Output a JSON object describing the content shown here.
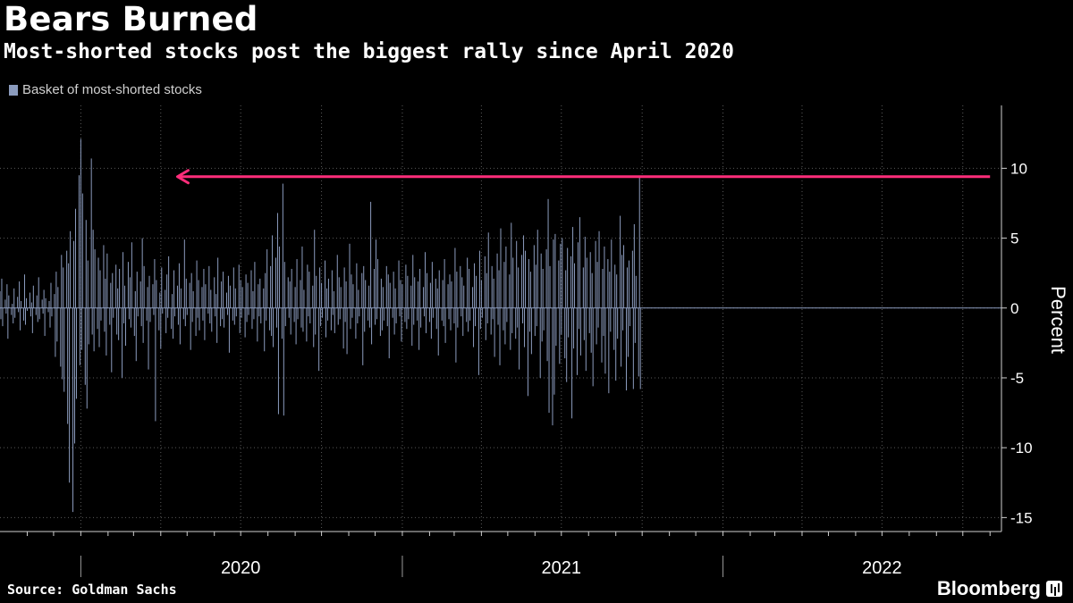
{
  "header": {
    "title": "Bears Burned",
    "subtitle": "Most-shorted stocks post the biggest rally since April 2020"
  },
  "legend": {
    "label": "Basket of most-shorted stocks"
  },
  "footer": {
    "source": "Source: Goldman Sachs",
    "brand": "Bloomberg"
  },
  "colors": {
    "bar": "#8b9bbd",
    "arrow": "#ff2d7a",
    "grid": "#5a5a5a",
    "text": "#ffffff"
  },
  "chart_data": {
    "type": "bar",
    "ylabel": "Percent",
    "ylim": [
      -16,
      14.5
    ],
    "yticks": [
      10,
      5,
      0,
      -5,
      -10,
      -15
    ],
    "xlim": [
      "2019-10-01",
      "2022-11-14"
    ],
    "x_labels": [
      {
        "label": "2020",
        "date": "2020-07-01"
      },
      {
        "label": "2021",
        "date": "2021-07-01"
      },
      {
        "label": "2022",
        "date": "2022-07-01"
      }
    ],
    "annotation": {
      "type": "arrow",
      "from_date": "2022-11-01",
      "to_date": "2020-04-20",
      "y": 9.4
    },
    "series": [
      {
        "start_date": "2019-10-01",
        "frequency": "business-day",
        "values": [
          1.2,
          -0.8,
          2.1,
          -1.3,
          0.6,
          -0.4,
          1.7,
          -2.2,
          0.9,
          -0.5,
          0.3,
          -1.1,
          1.4,
          -0.7,
          0.8,
          -0.3,
          1.9,
          -1.6,
          0.5,
          -0.9,
          2.4,
          -1.2,
          0.7,
          -0.2,
          1.1,
          -0.6,
          0.4,
          -1.8,
          1.6,
          -0.5,
          0.9,
          -1.0,
          2.2,
          -0.8,
          0.6,
          -0.4,
          1.3,
          -2.0,
          0.7,
          -0.3,
          0.5,
          -1.4,
          1.8,
          -0.6,
          1.0,
          -3.5,
          2.6,
          -2.4,
          1.5,
          -4.2,
          3.8,
          -5.1,
          2.9,
          -6.0,
          4.1,
          -8.3,
          3.2,
          -12.5,
          5.5,
          -14.6,
          4.8,
          -9.7,
          7.1,
          -6.5,
          9.5,
          -4.1,
          12.1,
          -3.0,
          8.2,
          -5.5,
          6.3,
          -7.2,
          3.4,
          -2.6,
          10.7,
          -1.9,
          5.6,
          -3.1,
          4.2,
          -1.5,
          3.6,
          -2.8,
          2.7,
          -0.9,
          4.5,
          -1.7,
          2.1,
          -3.4,
          3.9,
          -1.2,
          1.8,
          -4.6,
          2.5,
          -0.7,
          3.1,
          -1.9,
          1.4,
          -2.3,
          2.8,
          -5.0,
          4.0,
          -1.1,
          1.6,
          -2.7,
          3.3,
          -0.8,
          2.2,
          -1.4,
          4.7,
          -2.0,
          1.2,
          -3.8,
          2.6,
          -0.6,
          1.9,
          -1.3,
          5.0,
          -2.5,
          3.0,
          -0.9,
          1.5,
          -4.4,
          2.3,
          -1.0,
          1.7,
          -0.5,
          3.5,
          -8.1,
          2.0,
          -1.6,
          1.1,
          -2.9,
          2.9,
          -0.4,
          1.3,
          -1.8,
          2.4,
          -0.7,
          3.7,
          -1.5,
          1.0,
          -2.2,
          2.7,
          -0.6,
          1.6,
          -1.2,
          3.2,
          -2.6,
          1.4,
          -0.8,
          4.9,
          -1.3,
          2.1,
          -0.5,
          1.8,
          -3.0,
          2.5,
          -1.0,
          1.2,
          -2.0,
          3.4,
          -0.7,
          2.0,
          -1.6,
          1.5,
          -0.9,
          2.8,
          -2.3,
          1.7,
          -0.4,
          3.0,
          -1.1,
          1.3,
          -1.7,
          2.2,
          -0.6,
          1.0,
          -2.5,
          3.6,
          -1.3,
          1.9,
          -0.8,
          2.6,
          -1.4,
          1.1,
          -0.5,
          2.3,
          -3.2,
          1.6,
          -0.9,
          2.9,
          -1.2,
          1.4,
          -0.6,
          3.1,
          -1.8,
          2.0,
          -0.7,
          1.5,
          -2.1,
          2.4,
          -1.0,
          1.8,
          -0.5,
          2.7,
          -1.5,
          1.2,
          -0.8,
          3.3,
          -2.4,
          1.7,
          -0.6,
          2.1,
          -1.1,
          1.4,
          -3.1,
          2.5,
          -0.9,
          4.2,
          -1.6,
          3.0,
          -2.0,
          5.2,
          -2.8,
          3.6,
          -1.4,
          6.8,
          -7.6,
          4.4,
          -2.2,
          8.9,
          -7.7,
          3.3,
          -1.3,
          2.2,
          -0.7,
          1.9,
          -1.9,
          2.8,
          -1.0,
          1.5,
          -2.6,
          3.5,
          -0.8,
          2.0,
          -1.4,
          4.4,
          -1.7,
          1.3,
          -2.4,
          3.1,
          -0.6,
          2.6,
          -1.1,
          1.6,
          -2.8,
          5.6,
          -1.9,
          2.3,
          -4.5,
          2.9,
          -1.3,
          1.8,
          -0.7,
          3.4,
          -2.1,
          1.4,
          -0.9,
          2.1,
          -1.6,
          2.7,
          -0.5,
          1.2,
          -1.8,
          3.8,
          -1.2,
          2.2,
          -0.8,
          1.5,
          -2.9,
          2.9,
          -1.0,
          1.9,
          -3.3,
          4.6,
          -1.5,
          2.4,
          -0.7,
          1.7,
          -2.2,
          3.2,
          -1.1,
          1.3,
          -0.6,
          2.5,
          -4.1,
          3.0,
          -1.7,
          2.0,
          -0.9,
          1.6,
          -1.4,
          7.6,
          -2.6,
          2.8,
          -1.2,
          4.9,
          -0.8,
          3.5,
          -2.0,
          2.1,
          -1.6,
          1.5,
          -0.9,
          3.0,
          -1.3,
          2.4,
          -3.6,
          1.8,
          -0.7,
          2.6,
          -1.9,
          1.4,
          -1.1,
          3.4,
          -0.6,
          2.0,
          -2.4,
          1.7,
          -1.0,
          3.1,
          -1.5,
          2.3,
          -0.8,
          1.6,
          -2.7,
          3.8,
          -1.2,
          2.2,
          -0.9,
          1.9,
          -3.0,
          2.8,
          -1.4,
          1.5,
          -0.6,
          4.0,
          -1.8,
          2.5,
          -1.0,
          1.8,
          -2.2,
          3.3,
          -0.7,
          2.1,
          -1.5,
          1.4,
          -3.4,
          2.7,
          -0.9,
          2.0,
          -1.3,
          3.5,
          -2.5,
          1.7,
          -0.8,
          2.4,
          -1.6,
          1.9,
          -1.1,
          4.3,
          -3.9,
          2.6,
          -1.4,
          3.0,
          -0.6,
          2.2,
          -2.0,
          1.6,
          -1.0,
          3.6,
          -1.7,
          2.8,
          -0.9,
          1.5,
          -2.8,
          3.2,
          -1.3,
          2.3,
          -4.8,
          4.1,
          -1.5,
          2.0,
          -0.7,
          3.7,
          -2.3,
          2.5,
          -1.1,
          5.4,
          -1.9,
          3.0,
          -0.8,
          2.1,
          -3.5,
          3.9,
          -1.2,
          2.7,
          -4.1,
          5.7,
          -1.6,
          3.3,
          -2.6,
          4.4,
          -1.0,
          2.4,
          -3.0,
          6.1,
          -1.8,
          3.6,
          -2.2,
          4.8,
          -1.4,
          2.9,
          -4.4,
          3.8,
          -1.1,
          5.2,
          -2.8,
          4.1,
          -6.3,
          3.5,
          -1.7,
          2.6,
          -3.3,
          4.5,
          -2.0,
          3.1,
          -1.3,
          5.6,
          -5.0,
          3.9,
          -2.4,
          2.8,
          -1.6,
          4.2,
          -3.8,
          7.8,
          -7.5,
          3.0,
          -8.4,
          4.9,
          -6.2,
          5.3,
          -2.7,
          3.4,
          -4.0,
          4.6,
          -1.9,
          5.0,
          -3.6,
          2.7,
          -5.3,
          4.3,
          -2.1,
          3.7,
          -7.9,
          5.8,
          -2.9,
          3.2,
          -4.8,
          4.7,
          -1.5,
          6.5,
          -3.4,
          2.9,
          -2.3,
          5.1,
          -4.5,
          3.6,
          -1.8,
          4.0,
          -3.2,
          2.5,
          -5.6,
          4.8,
          -2.6,
          3.3,
          -1.4,
          5.5,
          -3.9,
          2.8,
          -2.0,
          4.4,
          -4.7,
          3.5,
          -6.1,
          2.6,
          -1.7,
          4.9,
          -3.0,
          3.1,
          -5.2,
          2.4,
          -2.2,
          6.6,
          -4.2,
          3.8,
          -1.6,
          4.5,
          -5.9,
          2.9,
          -3.5,
          3.4,
          -1.3,
          4.1,
          -5.8,
          6.0,
          -2.5,
          2.3,
          -4.9,
          9.4,
          -5.8
        ]
      }
    ]
  }
}
